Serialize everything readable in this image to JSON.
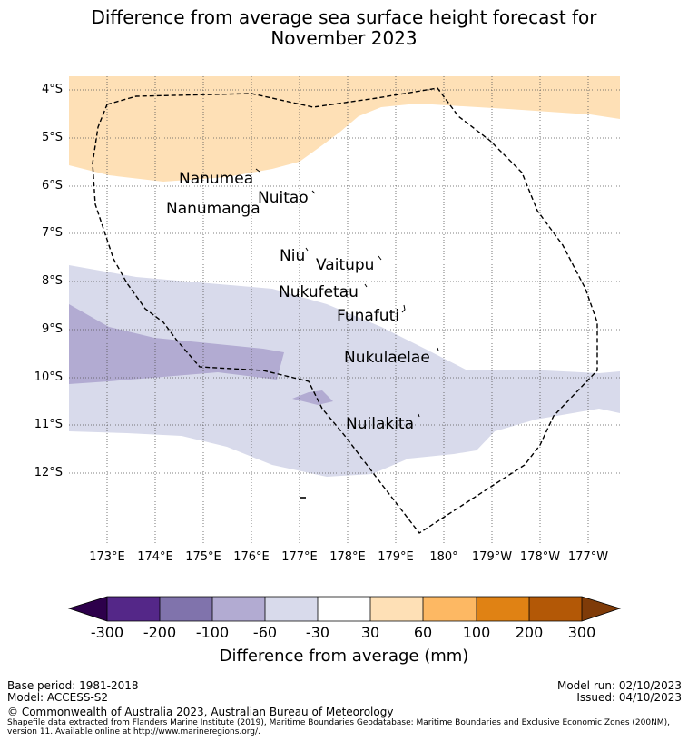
{
  "title_line1": "Difference from average sea surface height forecast for",
  "title_line2": "November 2023",
  "lat_labels": [
    "4°S",
    "5°S",
    "6°S",
    "7°S",
    "8°S",
    "9°S",
    "10°S",
    "11°S",
    "12°S"
  ],
  "lon_labels": [
    "173°E",
    "174°E",
    "175°E",
    "176°E",
    "177°E",
    "178°E",
    "179°E",
    "180°",
    "179°W",
    "178°W",
    "177°W"
  ],
  "islands": {
    "nanumea": "Nanumea",
    "nuitao": "Nuitao",
    "nanumanga": "Nanumanga",
    "niu": "Niu",
    "vaitupu": "Vaitupu",
    "nukufetau": "Nukufetau",
    "funafuti": "Funafuti",
    "nukulaelae": "Nukulaelae",
    "nuilakita": "Nuilakita"
  },
  "colorbar": {
    "ticks": [
      "-300",
      "-200",
      "-100",
      "-60",
      "-30",
      "30",
      "60",
      "100",
      "200",
      "300"
    ],
    "colors": [
      "#2d004b",
      "#542788",
      "#8073ac",
      "#b2abd2",
      "#d8daeb",
      "#ffffff",
      "#fee0b6",
      "#fdb863",
      "#e08214",
      "#b35806",
      "#7f3b08"
    ],
    "label": "Difference from average (mm)"
  },
  "footer": {
    "base_period": "Base period: 1981-2018",
    "model": "Model: ACCESS-S2",
    "model_run": "Model run: 02/10/2023",
    "issued": "Issued: 04/10/2023",
    "copyright": "© Commonwealth of Australia 2023, Australian Bureau of Meteorology",
    "source_line1": "Shapefile data extracted from Flanders Marine Institute (2019), Maritime Boundaries Geodatabase: Maritime Boundaries and Exclusive Economic Zones (200NM),",
    "source_line2": "version 11. Available online at http://www.marineregions.org/."
  }
}
